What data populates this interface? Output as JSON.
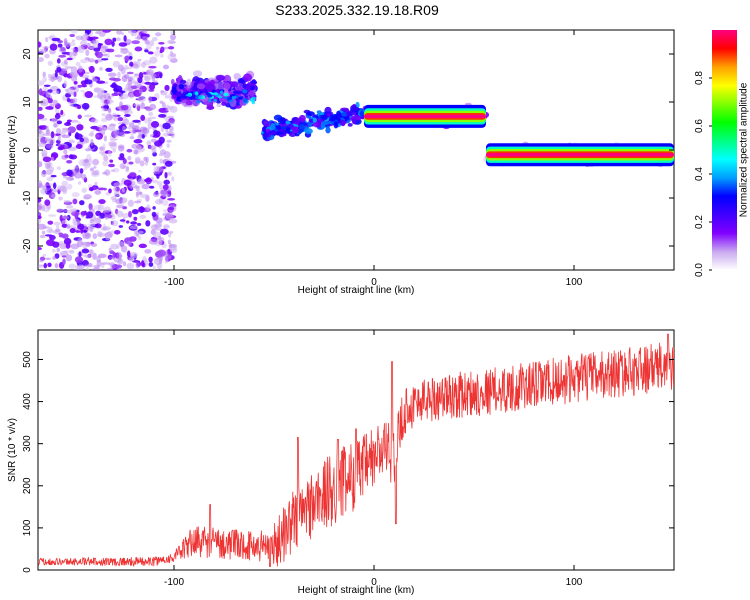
{
  "figure": {
    "title": "S233.2025.332.19.18.R09"
  },
  "chart_data": [
    {
      "type": "heatmap",
      "xlabel": "Height of straight line (km)",
      "ylabel": "Frequency (Hz)",
      "xlim": [
        -168,
        150
      ],
      "ylim": [
        -25,
        25
      ],
      "x_ticks": [
        -100,
        0,
        100
      ],
      "y_ticks": [
        -20,
        -10,
        0,
        10,
        20
      ],
      "colorbar": {
        "label": "Normalized spectral amplitude",
        "range": [
          0,
          1
        ],
        "ticks": [
          0.0,
          0.2,
          0.4,
          0.6,
          0.8
        ],
        "colors": [
          "#ffffff",
          "#c8a8f0",
          "#8000ff",
          "#4000ff",
          "#0000ff",
          "#00a0ff",
          "#00ffff",
          "#00ff80",
          "#00ff00",
          "#80ff00",
          "#ffff00",
          "#ffa000",
          "#ff0000",
          "#ff0080"
        ]
      },
      "features": [
        {
          "description": "scattered low-amplitude noise",
          "x_range": [
            -168,
            -100
          ],
          "freq_range": [
            -25,
            25
          ],
          "amplitude": 0.1
        },
        {
          "description": "diffuse band",
          "x_range": [
            -100,
            -60
          ],
          "freq_range": [
            8,
            16
          ],
          "amplitude": 0.2
        },
        {
          "description": "rising trace",
          "x_range": [
            -55,
            -5
          ],
          "freq_range": [
            1,
            8
          ],
          "amplitude": 0.35
        },
        {
          "description": "strong carrier",
          "x_range": [
            -5,
            56
          ],
          "center_freq": 7.0,
          "amplitude": 1.0
        },
        {
          "description": "strong carrier",
          "x_range": [
            56,
            150
          ],
          "center_freq": -1.0,
          "amplitude": 1.0
        }
      ]
    },
    {
      "type": "line",
      "xlabel": "Height of straight line (km)",
      "ylabel": "SNR (10 * v/v)",
      "xlim": [
        -168,
        150
      ],
      "ylim": [
        0,
        570
      ],
      "x_ticks": [
        -100,
        0,
        100
      ],
      "y_ticks": [
        0,
        100,
        200,
        300,
        400,
        500
      ],
      "color": "#ee3333",
      "trend": {
        "x": [
          -168,
          -110,
          -100,
          -90,
          -70,
          -50,
          -40,
          -30,
          -15,
          -5,
          5,
          10,
          15,
          25,
          50,
          75,
          100,
          125,
          150
        ],
        "y": [
          20,
          20,
          30,
          70,
          60,
          55,
          120,
          160,
          210,
          240,
          290,
          270,
          380,
          405,
          420,
          435,
          455,
          470,
          485
        ]
      },
      "noise_amplitude": {
        "x": [
          -168,
          -100,
          -90,
          -60,
          -40,
          -20,
          0,
          20,
          150
        ],
        "y": [
          8,
          12,
          40,
          35,
          80,
          90,
          80,
          55,
          60
        ]
      },
      "spikes": [
        {
          "x": 9,
          "y": 495
        },
        {
          "x": -38,
          "y": 315
        },
        {
          "x": -18,
          "y": 310
        },
        {
          "x": -9,
          "y": 335
        },
        {
          "x": -82,
          "y": 155
        },
        {
          "x": 11,
          "y": 110
        },
        {
          "x": 147,
          "y": 560
        }
      ]
    }
  ]
}
